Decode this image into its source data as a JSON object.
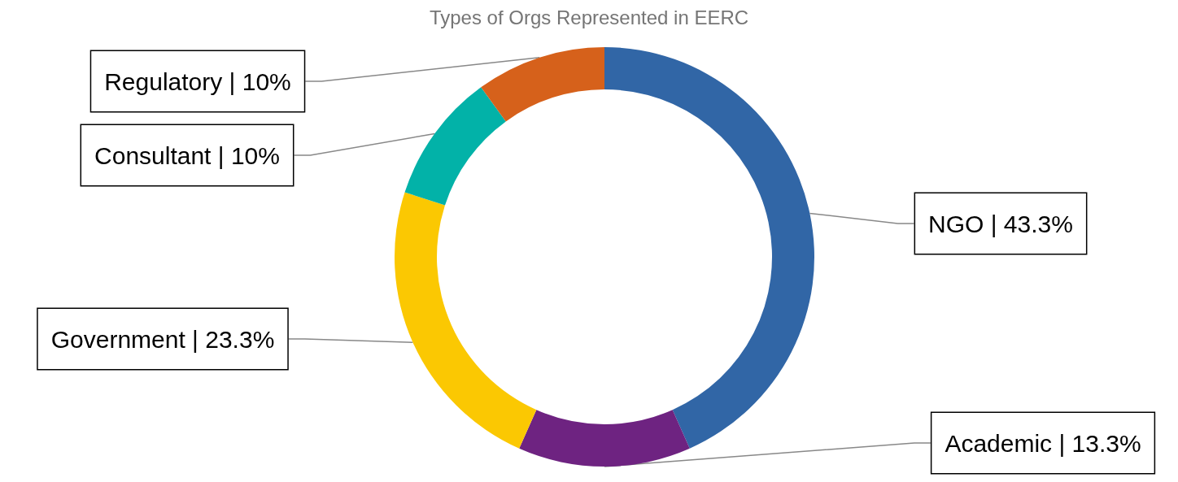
{
  "chart_data": {
    "type": "donut",
    "title": "Types of Orgs Represented in EERC",
    "categories": [
      "NGO",
      "Academic",
      "Government",
      "Consultant",
      "Regulatory"
    ],
    "values": [
      43.3,
      13.3,
      23.3,
      10,
      10
    ],
    "value_labels": [
      "| 43.3%",
      "| 13.3%",
      "| 23.3%",
      "| 10%",
      "| 10%"
    ],
    "colors": [
      "#3166a6",
      "#6e2381",
      "#fbc802",
      "#02b2a8",
      "#d6611b"
    ],
    "legend": false
  }
}
